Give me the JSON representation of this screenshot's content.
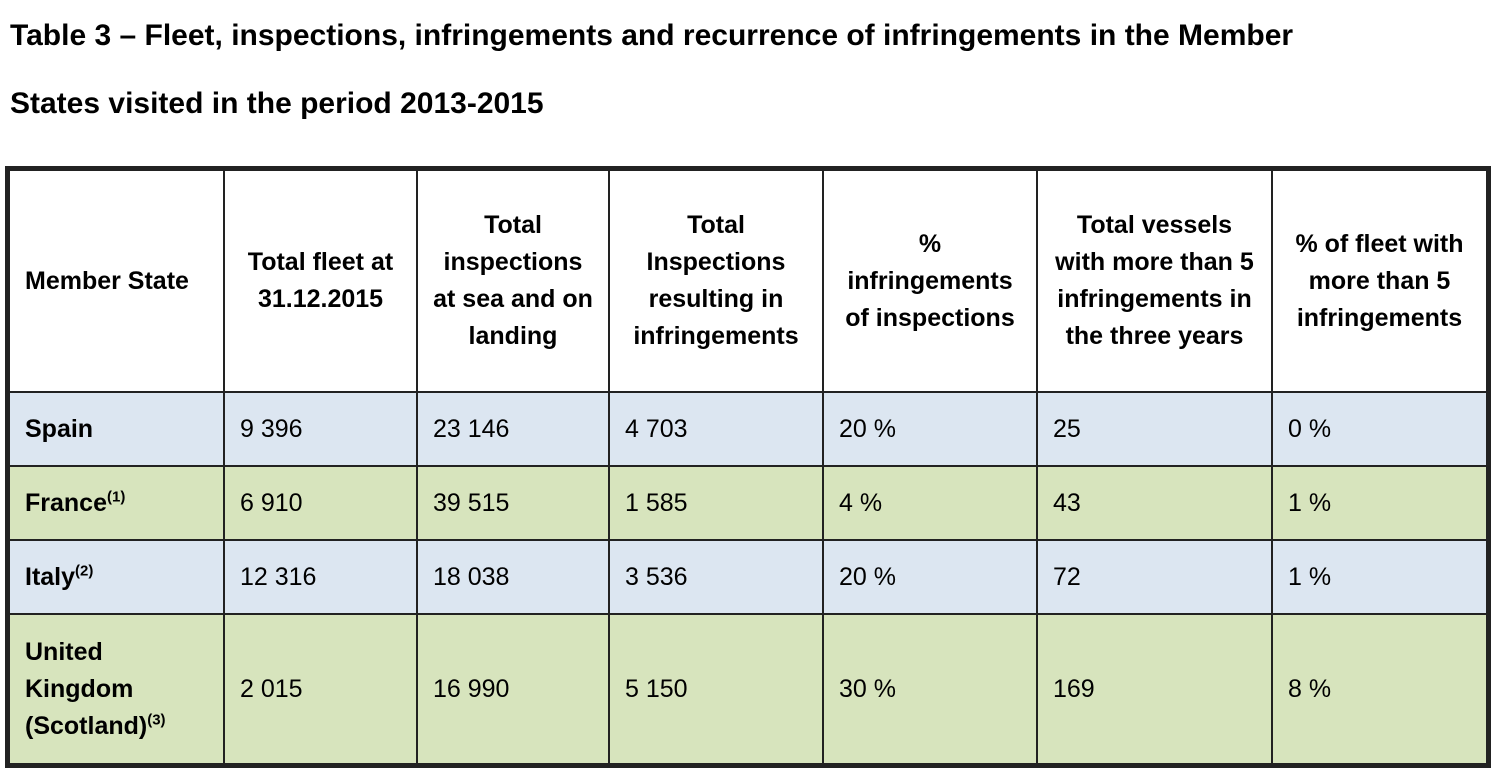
{
  "title": {
    "line1": "Table 3 – Fleet, inspections, infringements and recurrence of infringements in the Member",
    "line2": "States visited in the period 2013-2015"
  },
  "colors": {
    "row_blue": "#dce6f1",
    "row_green": "#d7e4bd",
    "border": "#222222"
  },
  "columns": [
    "Member State",
    "Total fleet at 31.12.2015",
    "Total inspections at sea and on landing",
    "Total Inspections resulting in infringements",
    "% infringements of inspections",
    "Total vessels with more than 5 infringements in the three years",
    "% of fleet with more than 5 infringements"
  ],
  "rows": [
    {
      "state": "Spain",
      "note": "",
      "fleet": "9 396",
      "inspections": "23 146",
      "infr_inspections": "4 703",
      "pct_infr": "20 %",
      "vessels_gt5": "25",
      "pct_fleet_gt5": "0 %"
    },
    {
      "state": "France",
      "note": "(1)",
      "fleet": "6 910",
      "inspections": "39 515",
      "infr_inspections": "1 585",
      "pct_infr": "4 %",
      "vessels_gt5": "43",
      "pct_fleet_gt5": "1 %"
    },
    {
      "state": "Italy",
      "note": "(2)",
      "fleet": "12 316",
      "inspections": "18 038",
      "infr_inspections": "3 536",
      "pct_infr": "20 %",
      "vessels_gt5": "72",
      "pct_fleet_gt5": "1 %"
    },
    {
      "state": "United Kingdom (Scotland)",
      "note": "(3)",
      "fleet": "2 015",
      "inspections": "16 990",
      "infr_inspections": "5 150",
      "pct_infr": "30 %",
      "vessels_gt5": "169",
      "pct_fleet_gt5": "8 %"
    }
  ]
}
